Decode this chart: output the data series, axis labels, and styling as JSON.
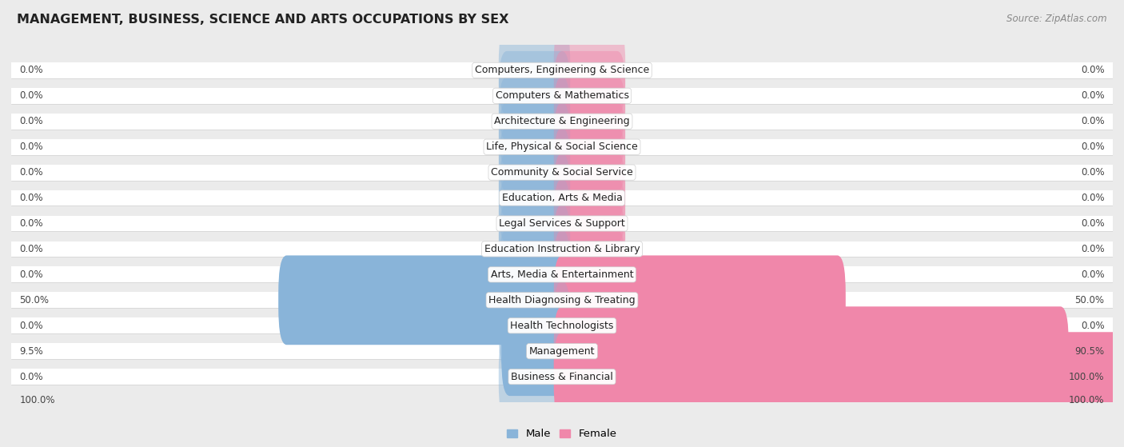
{
  "title": "MANAGEMENT, BUSINESS, SCIENCE AND ARTS OCCUPATIONS BY SEX",
  "source": "Source: ZipAtlas.com",
  "categories": [
    "Computers, Engineering & Science",
    "Computers & Mathematics",
    "Architecture & Engineering",
    "Life, Physical & Social Science",
    "Community & Social Service",
    "Education, Arts & Media",
    "Legal Services & Support",
    "Education Instruction & Library",
    "Arts, Media & Entertainment",
    "Health Diagnosing & Treating",
    "Health Technologists",
    "Management",
    "Business & Financial"
  ],
  "male_values": [
    0.0,
    0.0,
    0.0,
    0.0,
    0.0,
    0.0,
    0.0,
    0.0,
    0.0,
    50.0,
    0.0,
    9.5,
    0.0
  ],
  "female_values": [
    0.0,
    0.0,
    0.0,
    0.0,
    0.0,
    0.0,
    0.0,
    0.0,
    0.0,
    50.0,
    0.0,
    90.5,
    100.0
  ],
  "male_color": "#89b4d9",
  "female_color": "#f087aa",
  "male_label": "Male",
  "female_label": "Female",
  "bg_color": "#ebebeb",
  "row_bg_even": "#f5f5f5",
  "row_bg_odd": "#e8e8e8",
  "row_white": "#ffffff",
  "max_val": 100.0,
  "stub_val": 10.0,
  "label_fontsize": 9.0,
  "title_fontsize": 11.5,
  "source_fontsize": 8.5,
  "value_fontsize": 8.5
}
